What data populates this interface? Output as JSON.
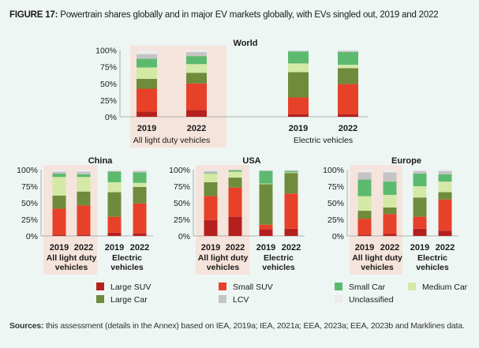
{
  "figure": {
    "label": "FIGURE 17:",
    "title": "Powertrain shares globally and in major EV markets globally, with EVs singled out, 2019 and 2022"
  },
  "sources": {
    "label": "Sources:",
    "text": "this assessment (details in the Annex) based on IEA, 2019a; IEA, 2021a; EEA, 2023a; EEA, 2023b and Marklines data."
  },
  "colors": {
    "Large SUV": "#b5201f",
    "Small SUV": "#e8412a",
    "Large Car": "#6f8b3c",
    "Small Car": "#5cba6f",
    "Medium Car": "#d4e9a6",
    "LCV": "#c4c4c4",
    "Unclassified": "#ececec",
    "highlight": "#f5e4dc"
  },
  "legend": {
    "position": "bottom",
    "items": [
      "Large SUV",
      "Small SUV",
      "Small Car",
      "Medium Car",
      "Large Car",
      "LCV",
      "Unclassified"
    ]
  },
  "chart_data": [
    {
      "type": "bar",
      "stacked": true,
      "title": "World",
      "ylim": [
        0,
        100
      ],
      "yticks": [
        "0%",
        "25%",
        "50%",
        "75%",
        "100%"
      ],
      "groups": [
        {
          "label": "All light duty vehicles",
          "highlight": true
        },
        {
          "label": "Electric vehicles",
          "highlight": false
        }
      ],
      "categories": [
        "2019",
        "2022",
        "2019",
        "2022"
      ],
      "series": [
        {
          "name": "Large SUV",
          "values": [
            8,
            10,
            4,
            4
          ]
        },
        {
          "name": "Small SUV",
          "values": [
            34,
            40,
            25,
            45
          ]
        },
        {
          "name": "Large Car",
          "values": [
            15,
            16,
            38,
            24
          ]
        },
        {
          "name": "Medium Car",
          "values": [
            17,
            13,
            13,
            5
          ]
        },
        {
          "name": "Small Car",
          "values": [
            13,
            12,
            18,
            19
          ]
        },
        {
          "name": "LCV",
          "values": [
            7,
            6,
            1,
            2
          ]
        },
        {
          "name": "Unclassified",
          "values": [
            6,
            3,
            1,
            1
          ]
        }
      ]
    },
    {
      "type": "bar",
      "stacked": true,
      "title": "China",
      "ylim": [
        0,
        100
      ],
      "yticks": [
        "0%",
        "25%",
        "50%",
        "75%",
        "100%"
      ],
      "groups": [
        {
          "label": "All light duty vehicles",
          "highlight": true
        },
        {
          "label": "Electric vehicles",
          "highlight": false
        }
      ],
      "categories": [
        "2019",
        "2022",
        "2019",
        "2022"
      ],
      "series": [
        {
          "name": "Large SUV",
          "values": [
            2,
            2,
            5,
            4
          ]
        },
        {
          "name": "Small SUV",
          "values": [
            39,
            44,
            24,
            45
          ]
        },
        {
          "name": "Large Car",
          "values": [
            20,
            21,
            37,
            25
          ]
        },
        {
          "name": "Medium Car",
          "values": [
            28,
            22,
            15,
            6
          ]
        },
        {
          "name": "Small Car",
          "values": [
            5,
            4,
            16,
            16
          ]
        },
        {
          "name": "LCV",
          "values": [
            3,
            4,
            1,
            2
          ]
        },
        {
          "name": "Unclassified",
          "values": [
            3,
            3,
            2,
            2
          ]
        }
      ]
    },
    {
      "type": "bar",
      "stacked": true,
      "title": "USA",
      "ylim": [
        0,
        100
      ],
      "yticks": [
        "0%",
        "25%",
        "50%",
        "75%",
        "100%"
      ],
      "groups": [
        {
          "label": "All light duty vehicles",
          "highlight": true
        },
        {
          "label": "Electric vehicles",
          "highlight": false
        }
      ],
      "categories": [
        "2019",
        "2022",
        "2019",
        "2022"
      ],
      "series": [
        {
          "name": "Large SUV",
          "values": [
            24,
            29,
            10,
            11
          ]
        },
        {
          "name": "Small SUV",
          "values": [
            36,
            44,
            7,
            53
          ]
        },
        {
          "name": "Large Car",
          "values": [
            21,
            15,
            61,
            31
          ]
        },
        {
          "name": "Medium Car",
          "values": [
            13,
            9,
            1,
            1
          ]
        },
        {
          "name": "Small Car",
          "values": [
            1,
            2,
            19,
            2
          ]
        },
        {
          "name": "LCV",
          "values": [
            3,
            1,
            1,
            1
          ]
        },
        {
          "name": "Unclassified",
          "values": [
            2,
            0,
            1,
            1
          ]
        }
      ]
    },
    {
      "type": "bar",
      "stacked": true,
      "title": "Europe",
      "ylim": [
        0,
        100
      ],
      "yticks": [
        "0%",
        "25%",
        "50%",
        "75%",
        "100%"
      ],
      "groups": [
        {
          "label": "All light duty vehicles",
          "highlight": true
        },
        {
          "label": "Electric vehicles",
          "highlight": false
        }
      ],
      "categories": [
        "2019",
        "2022",
        "2019",
        "2022"
      ],
      "series": [
        {
          "name": "Large SUV",
          "values": [
            2,
            3,
            11,
            8
          ]
        },
        {
          "name": "Small SUV",
          "values": [
            24,
            30,
            18,
            47
          ]
        },
        {
          "name": "Large Car",
          "values": [
            12,
            10,
            29,
            11
          ]
        },
        {
          "name": "Medium Car",
          "values": [
            22,
            19,
            17,
            16
          ]
        },
        {
          "name": "Small Car",
          "values": [
            25,
            20,
            19,
            11
          ]
        },
        {
          "name": "LCV",
          "values": [
            11,
            14,
            4,
            5
          ]
        },
        {
          "name": "Unclassified",
          "values": [
            4,
            4,
            2,
            2
          ]
        }
      ]
    }
  ]
}
